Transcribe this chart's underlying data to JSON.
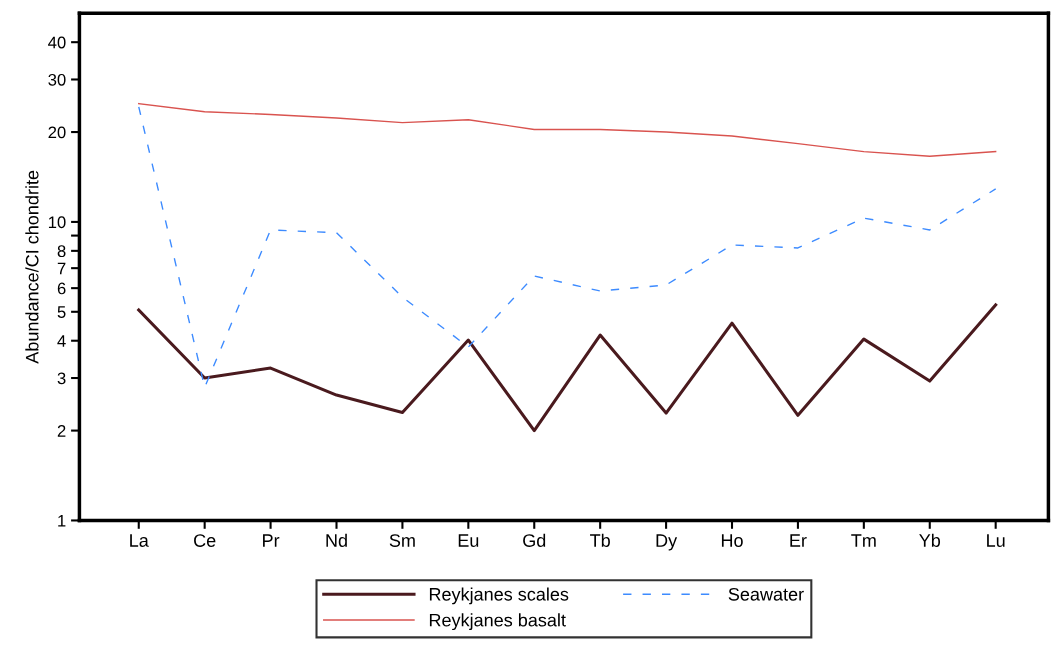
{
  "chart_data": {
    "type": "line",
    "ylabel": "Abundance/CI chondrite",
    "log": "y",
    "categories": [
      "La",
      "Ce",
      "Pr",
      "Nd",
      "Sm",
      "Eu",
      "Gd",
      "Tb",
      "Dy",
      "Ho",
      "Er",
      "Tm",
      "Yb",
      "Lu"
    ],
    "series": [
      {
        "name": "Reykjanes scales",
        "color": "#4a1a1e",
        "line_style": "solid",
        "values": [
          5.07,
          3.0,
          3.24,
          2.63,
          2.3,
          4.02,
          2.0,
          4.18,
          2.29,
          4.58,
          2.25,
          4.05,
          2.93,
          5.27
        ]
      },
      {
        "name": "Reykjanes basalt",
        "color": "#d9534f",
        "line_style": "solid",
        "values": [
          24.9,
          23.4,
          22.9,
          22.3,
          21.5,
          22.0,
          20.4,
          20.4,
          20.0,
          19.4,
          18.3,
          17.2,
          16.6,
          17.2
        ]
      },
      {
        "name": "Seawater",
        "color": "#3d8bff",
        "line_style": "dashed",
        "values": [
          24.3,
          2.79,
          9.4,
          9.2,
          5.6,
          3.81,
          6.59,
          5.87,
          6.15,
          8.37,
          8.18,
          10.3,
          9.4,
          12.9
        ]
      }
    ],
    "ylim": [
      1,
      50
    ],
    "yticks": [
      1,
      2,
      3,
      4,
      5,
      6,
      7,
      8,
      {
        "value": 9,
        "label": null
      },
      10,
      20,
      30,
      40
    ],
    "grid": false,
    "legend": "bottom",
    "marker": "none"
  }
}
